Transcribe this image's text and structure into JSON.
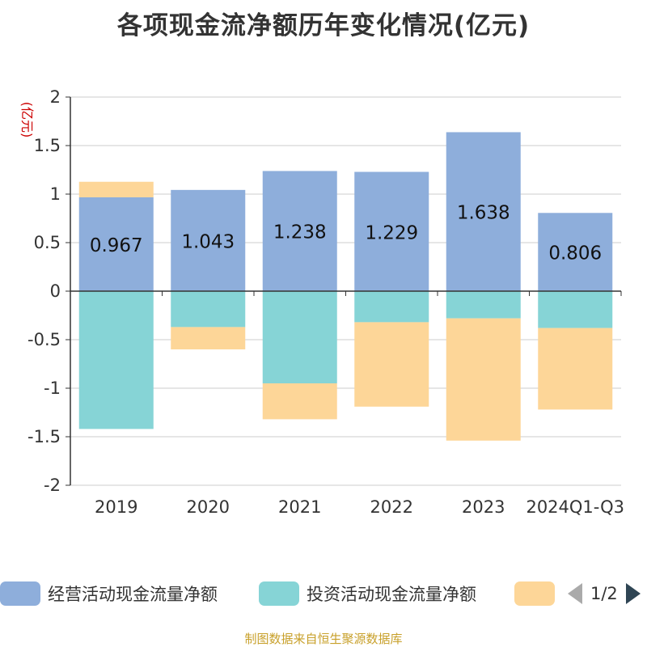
{
  "chart_data": {
    "type": "bar",
    "stacked": true,
    "title": "各项现金流净额历年变化情况(亿元)",
    "unit_label": "(亿元)",
    "categories": [
      "2019",
      "2020",
      "2021",
      "2022",
      "2023",
      "2024Q1-Q3"
    ],
    "ylim": [
      -2,
      2
    ],
    "yticks": [
      2,
      1.5,
      1,
      0.5,
      0,
      -0.5,
      -1,
      -1.5,
      -2
    ],
    "ytick_labels": [
      "2",
      "1.5",
      "1",
      "0.5",
      "0",
      "-0.5",
      "-1",
      "-1.5",
      "-2"
    ],
    "grid": true,
    "series": [
      {
        "name": "经营活动现金流量净额",
        "color": "#8eaedb",
        "values": [
          0.967,
          1.043,
          1.238,
          1.229,
          1.638,
          0.806
        ],
        "labels": [
          "0.967",
          "1.043",
          "1.238",
          "1.229",
          "1.638",
          "0.806"
        ]
      },
      {
        "name": "投资活动现金流量净额",
        "color": "#86d4d6",
        "values": [
          -1.42,
          -0.37,
          -0.95,
          -0.32,
          -0.28,
          -0.38
        ]
      },
      {
        "name": "",
        "color": "#fdd698",
        "values": [
          0.16,
          -0.23,
          -0.37,
          -0.87,
          -1.26,
          -0.84
        ]
      }
    ],
    "legend_page": "1/2",
    "source": "制图数据来自恒生聚源数据库"
  }
}
